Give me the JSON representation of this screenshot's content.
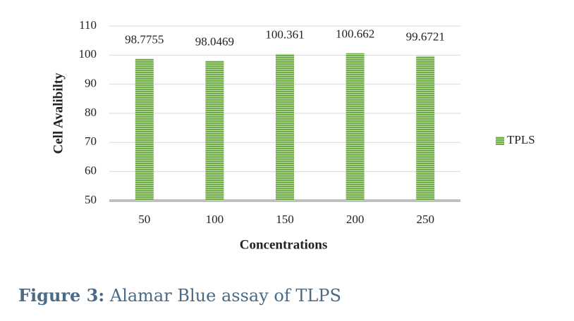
{
  "chart_data": {
    "type": "bar",
    "x_label": "Concentrations",
    "y_label": "Cell Avalibilty",
    "categories": [
      "50",
      "100",
      "150",
      "200",
      "250"
    ],
    "series": [
      {
        "name": "TPLS",
        "color": "#70ad47",
        "values": [
          98.7755,
          98.0469,
          100.361,
          100.662,
          99.6721
        ]
      }
    ],
    "ylim": [
      50,
      110
    ],
    "yticks": [
      50,
      60,
      70,
      80,
      90,
      100,
      110
    ],
    "grid": true,
    "legend": "right"
  },
  "caption": {
    "label": "Figure 3:",
    "text": "Alamar Blue assay of TLPS"
  }
}
